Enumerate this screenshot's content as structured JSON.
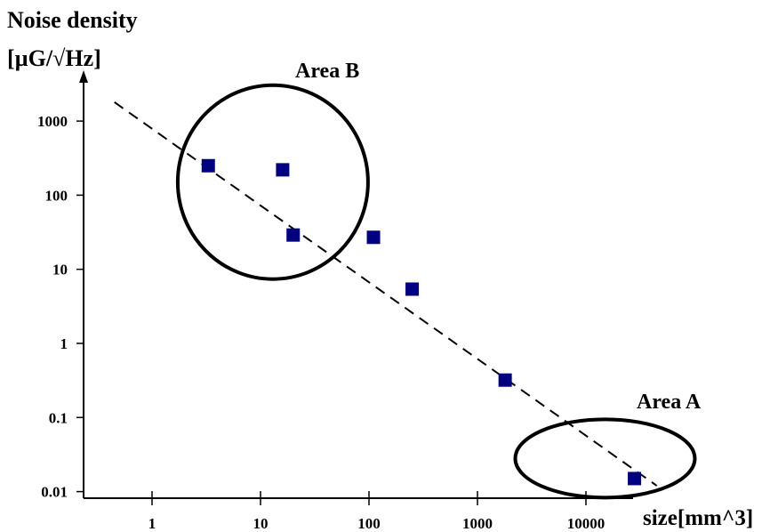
{
  "chart_data": {
    "type": "scatter",
    "title": "",
    "ylabel_line1": "Noise density",
    "ylabel_line2": "[µG/√Hz]",
    "xlabel": "size[mm^3]",
    "x_scale": "log",
    "y_scale": "log",
    "xlim": [
      0.1,
      100000
    ],
    "ylim": [
      0.008,
      4000
    ],
    "grid": false,
    "legend": "none",
    "x_ticks": [
      {
        "value": 1,
        "label": "1"
      },
      {
        "value": 10,
        "label": "10"
      },
      {
        "value": 100,
        "label": "100"
      },
      {
        "value": 1000,
        "label": "1000"
      },
      {
        "value": 10000,
        "label": "10000"
      }
    ],
    "y_ticks": [
      {
        "value": 0.01,
        "label": "0.01"
      },
      {
        "value": 0.1,
        "label": "0.1"
      },
      {
        "value": 1,
        "label": "1"
      },
      {
        "value": 10,
        "label": "10"
      },
      {
        "value": 100,
        "label": "100"
      },
      {
        "value": 1000,
        "label": "1000"
      }
    ],
    "points": [
      {
        "x": 3.3,
        "y": 250
      },
      {
        "x": 16,
        "y": 220
      },
      {
        "x": 20,
        "y": 29
      },
      {
        "x": 110,
        "y": 27
      },
      {
        "x": 250,
        "y": 5.4
      },
      {
        "x": 1800,
        "y": 0.32
      },
      {
        "x": 28000,
        "y": 0.015
      }
    ],
    "trend_line": {
      "style": "dashed",
      "from": {
        "x": 0.45,
        "y": 1800
      },
      "to": {
        "x": 45000,
        "y": 0.012
      }
    },
    "annotations": [
      {
        "label": "Area B",
        "shape": "ellipse",
        "center": {
          "x": 13,
          "y": 150
        }
      },
      {
        "label": "Area A",
        "shape": "ellipse",
        "center": {
          "x": 15000,
          "y": 0.028
        }
      }
    ],
    "colors": {
      "marker": "#000080",
      "axis": "#000000",
      "trend": "#000000"
    }
  }
}
